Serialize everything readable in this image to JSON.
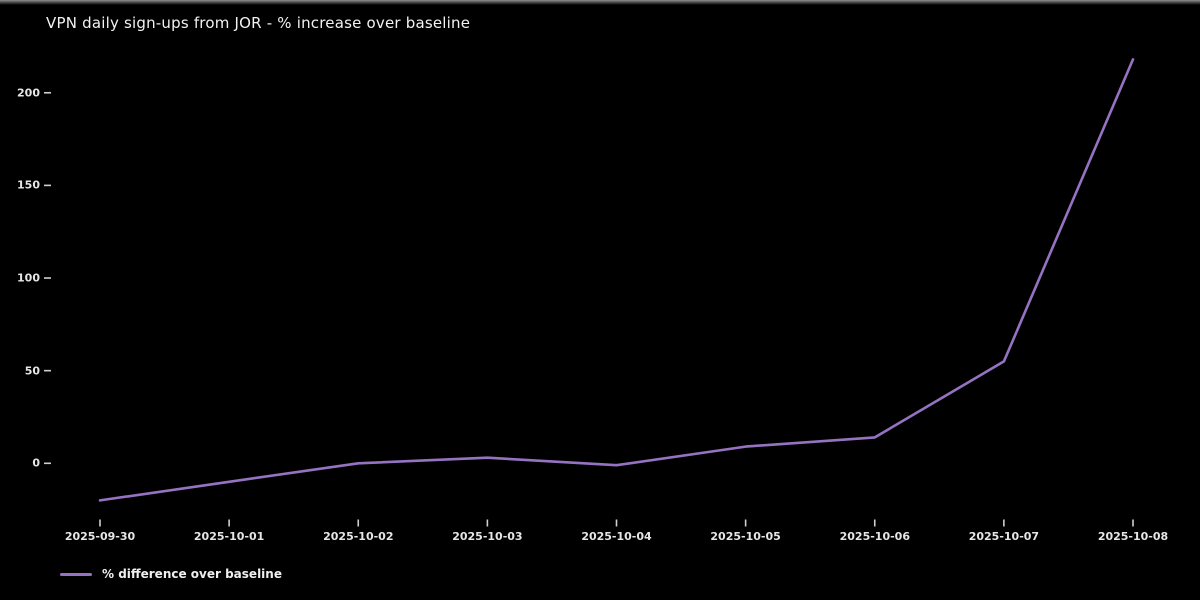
{
  "window": {
    "background": "#000000",
    "top_edge_color": "#8f8f8f"
  },
  "chart_data": {
    "type": "line",
    "title": "VPN daily sign-ups from JOR - % increase over baseline",
    "x": [
      "2025-09-30",
      "2025-10-01",
      "2025-10-02",
      "2025-10-03",
      "2025-10-04",
      "2025-10-05",
      "2025-10-06",
      "2025-10-07",
      "2025-10-08"
    ],
    "series": [
      {
        "name": "% difference over baseline",
        "values": [
          -20,
          -10,
          0,
          3,
          -1,
          9,
          14,
          55,
          218
        ]
      }
    ],
    "xlabel": "",
    "ylabel": "",
    "y_ticks": [
      0,
      50,
      100,
      150,
      200
    ],
    "ylim": [
      -32,
      230
    ],
    "grid": false,
    "legend_position": "lower-left",
    "background": "#000000",
    "text_color": "#e6e6e6",
    "tick_color": "#cfcfcf",
    "line_color": "#9673c2"
  },
  "legend": {
    "label": "% difference over baseline",
    "swatch_color": "#9673c2"
  }
}
